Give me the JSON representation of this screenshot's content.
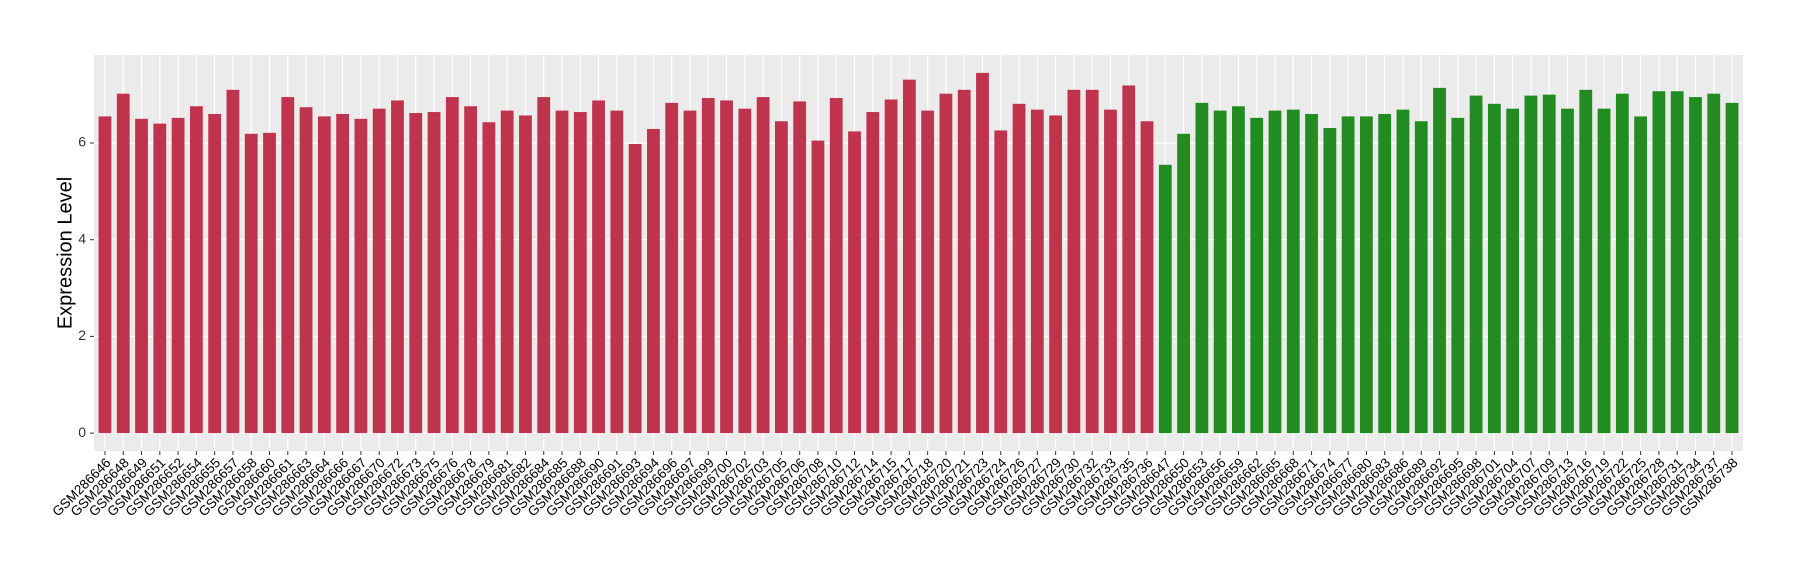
{
  "chart_data": {
    "type": "bar",
    "y_label": "Expression Level",
    "ylim": [
      -0.37,
      7.82
    ],
    "yticks": [
      0,
      2,
      4,
      6
    ],
    "grid": true,
    "series": [
      {
        "color": "#c0334d",
        "categories": [
          "GSM286646",
          "GSM286648",
          "GSM286649",
          "GSM286651",
          "GSM286652",
          "GSM286654",
          "GSM286655",
          "GSM286657",
          "GSM286658",
          "GSM286660",
          "GSM286661",
          "GSM286663",
          "GSM286664",
          "GSM286666",
          "GSM286667",
          "GSM286670",
          "GSM286672",
          "GSM286673",
          "GSM286675",
          "GSM286676",
          "GSM286678",
          "GSM286679",
          "GSM286681",
          "GSM286682",
          "GSM286684",
          "GSM286685",
          "GSM286688",
          "GSM286690",
          "GSM286691",
          "GSM286693",
          "GSM286694",
          "GSM286696",
          "GSM286697",
          "GSM286699",
          "GSM286700",
          "GSM286702",
          "GSM286703",
          "GSM286705",
          "GSM286706",
          "GSM286708",
          "GSM286710",
          "GSM286712",
          "GSM286714",
          "GSM286715",
          "GSM286717",
          "GSM286718",
          "GSM286720",
          "GSM286721",
          "GSM286723",
          "GSM286724",
          "GSM286726",
          "GSM286727",
          "GSM286729",
          "GSM286730",
          "GSM286732",
          "GSM286733",
          "GSM286735",
          "GSM286736"
        ],
        "values": [
          6.55,
          7.02,
          6.5,
          6.4,
          6.52,
          6.76,
          6.6,
          7.1,
          6.19,
          6.21,
          6.95,
          6.74,
          6.55,
          6.6,
          6.5,
          6.71,
          6.88,
          6.62,
          6.64,
          6.95,
          6.76,
          6.43,
          6.67,
          6.57,
          6.95,
          6.67,
          6.64,
          6.88,
          6.67,
          5.98,
          6.29,
          6.83,
          6.67,
          6.93,
          6.88,
          6.71,
          6.95,
          6.45,
          6.86,
          6.05,
          6.93,
          6.24,
          6.64,
          6.9,
          7.31,
          6.67,
          7.02,
          7.1,
          7.45,
          6.26,
          6.81,
          6.69,
          6.57,
          7.1,
          7.1,
          6.69,
          7.19,
          6.45
        ]
      },
      {
        "color": "#228b22",
        "categories": [
          "GSM286647",
          "GSM286650",
          "GSM286653",
          "GSM286656",
          "GSM286659",
          "GSM286662",
          "GSM286665",
          "GSM286668",
          "GSM286671",
          "GSM286674",
          "GSM286677",
          "GSM286680",
          "GSM286683",
          "GSM286686",
          "GSM286689",
          "GSM286692",
          "GSM286695",
          "GSM286698",
          "GSM286701",
          "GSM286704",
          "GSM286707",
          "GSM286709",
          "GSM286713",
          "GSM286716",
          "GSM286719",
          "GSM286722",
          "GSM286725",
          "GSM286728",
          "GSM286731",
          "GSM286734",
          "GSM286737",
          "GSM286738"
        ],
        "values": [
          5.55,
          6.19,
          6.83,
          6.67,
          6.76,
          6.52,
          6.67,
          6.69,
          6.6,
          6.31,
          6.55,
          6.55,
          6.6,
          6.69,
          6.45,
          7.14,
          6.52,
          6.98,
          6.81,
          6.71,
          6.98,
          7.0,
          6.71,
          7.1,
          6.71,
          7.02,
          6.55,
          7.07,
          7.07,
          6.95,
          7.02,
          6.83
        ]
      }
    ]
  }
}
